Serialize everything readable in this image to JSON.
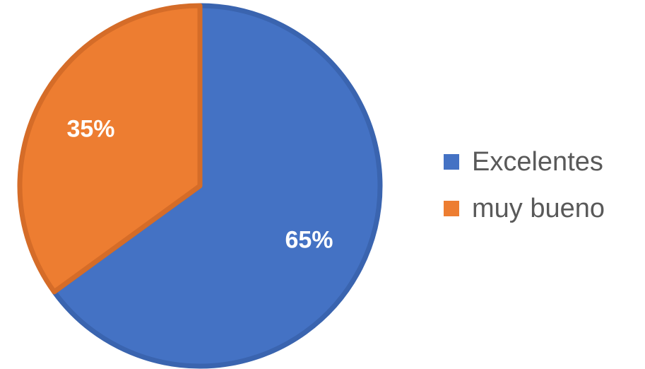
{
  "chart_data": {
    "type": "pie",
    "title": "",
    "categories": [
      "Excelentes",
      "muy bueno"
    ],
    "values": [
      65,
      35
    ],
    "labels": [
      "65%",
      "35%"
    ],
    "colors": [
      "#4472C4",
      "#ED7D31"
    ],
    "edge_colors": [
      "#3A64AF",
      "#D56C28"
    ],
    "legend_position": "right"
  }
}
